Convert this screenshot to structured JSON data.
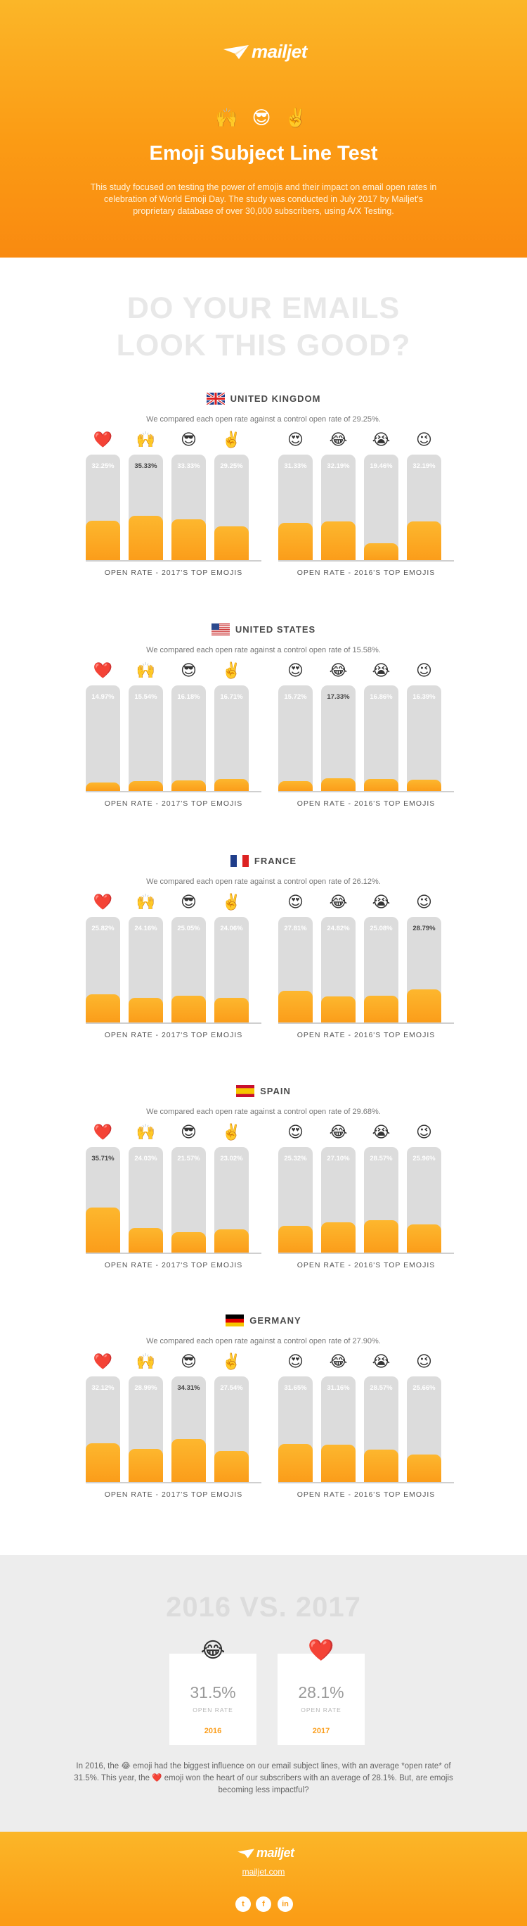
{
  "header": {
    "logo_text": "mailjet",
    "emojis": "🙌 😎 ✌️",
    "title": "Emoji Subject Line Test",
    "description": "This study focused on testing the power of emojis and their impact on email open rates in celebration of World Emoji Day. The study was conducted in July 2017 by Mailjet's proprietary database of over 30,000 subscribers, using A/X Testing."
  },
  "headline": {
    "line1": "DO YOUR EMAILS",
    "line2": "LOOK THIS GOOD?"
  },
  "icons": {
    "emojis_2017": [
      "❤️",
      "🙌",
      "😎",
      "✌️"
    ],
    "emojis_2016": [
      "😍",
      "😂",
      "😭",
      "😉"
    ],
    "flags": [
      "uk-flag-icon",
      "us-flag-icon",
      "france-flag-icon",
      "spain-flag-icon",
      "germany-flag-icon"
    ]
  },
  "colors": {
    "accent": "#fb9d1a",
    "bar_bg": "#dcdcdc"
  },
  "chart_data": [
    {
      "type": "bar",
      "title": "UNITED KINGDOM",
      "note": "We compared each open rate against a control open rate of 29.25%.",
      "groups": [
        {
          "label": "OPEN RATE - 2017'S TOP EMOJIS",
          "categories": [
            "heart",
            "raised hands",
            "sunglasses",
            "victory hand"
          ],
          "values": [
            32.25,
            35.33,
            33.33,
            29.25
          ],
          "labels": [
            "32.25%",
            "35.33%",
            "33.33%",
            "29.25%"
          ],
          "highlight": 1
        },
        {
          "label": "OPEN RATE - 2016'S TOP EMOJIS",
          "categories": [
            "heart eyes",
            "tears of joy",
            "loudly crying",
            "wink"
          ],
          "values": [
            31.33,
            32.19,
            19.46,
            32.19
          ],
          "labels": [
            "31.33%",
            "32.19%",
            "19.46%",
            "32.19%"
          ],
          "highlight": -1
        }
      ]
    },
    {
      "type": "bar",
      "title": "UNITED STATES",
      "note": "We compared each open rate against a control open rate of 15.58%.",
      "groups": [
        {
          "label": "OPEN RATE - 2017'S TOP EMOJIS",
          "categories": [
            "heart",
            "raised hands",
            "sunglasses",
            "victory hand"
          ],
          "values": [
            14.97,
            15.54,
            16.18,
            16.71
          ],
          "labels": [
            "14.97%",
            "15.54%",
            "16.18%",
            "16.71%"
          ],
          "highlight": -1
        },
        {
          "label": "OPEN RATE - 2016'S TOP EMOJIS",
          "categories": [
            "heart eyes",
            "tears of joy",
            "loudly crying",
            "wink"
          ],
          "values": [
            15.72,
            17.33,
            16.86,
            16.39
          ],
          "labels": [
            "15.72%",
            "17.33%",
            "16.86%",
            "16.39%"
          ],
          "highlight": 1
        }
      ]
    },
    {
      "type": "bar",
      "title": "FRANCE",
      "note": "We compared each open rate against a control open rate of 26.12%.",
      "groups": [
        {
          "label": "OPEN RATE - 2017'S TOP EMOJIS",
          "categories": [
            "heart",
            "raised hands",
            "sunglasses",
            "victory hand"
          ],
          "values": [
            25.82,
            24.16,
            25.05,
            24.06
          ],
          "labels": [
            "25.82%",
            "24.16%",
            "25.05%",
            "24.06%"
          ],
          "highlight": -1
        },
        {
          "label": "OPEN RATE - 2016'S TOP EMOJIS",
          "categories": [
            "heart eyes",
            "tears of joy",
            "loudly crying",
            "wink"
          ],
          "values": [
            27.81,
            24.82,
            25.08,
            28.79
          ],
          "labels": [
            "27.81%",
            "24.82%",
            "25.08%",
            "28.79%"
          ],
          "highlight": 3
        }
      ]
    },
    {
      "type": "bar",
      "title": "SPAIN",
      "note": "We compared each open rate against a control open rate of 29.68%.",
      "groups": [
        {
          "label": "OPEN RATE - 2017'S TOP EMOJIS",
          "categories": [
            "heart",
            "raised hands",
            "sunglasses",
            "victory hand"
          ],
          "values": [
            35.71,
            24.03,
            21.57,
            23.02
          ],
          "labels": [
            "35.71%",
            "24.03%",
            "21.57%",
            "23.02%"
          ],
          "highlight": 0
        },
        {
          "label": "OPEN RATE - 2016'S TOP EMOJIS",
          "categories": [
            "heart eyes",
            "tears of joy",
            "loudly crying",
            "wink"
          ],
          "values": [
            25.32,
            27.1,
            28.57,
            25.96
          ],
          "labels": [
            "25.32%",
            "27.10%",
            "28.57%",
            "25.96%"
          ],
          "highlight": -1
        }
      ]
    },
    {
      "type": "bar",
      "title": "GERMANY",
      "note": "We compared each open rate against a control open rate of 27.90%.",
      "groups": [
        {
          "label": "OPEN RATE - 2017'S TOP EMOJIS",
          "categories": [
            "heart",
            "raised hands",
            "sunglasses",
            "victory hand"
          ],
          "values": [
            32.12,
            28.99,
            34.31,
            27.54
          ],
          "labels": [
            "32.12%",
            "28.99%",
            "34.31%",
            "27.54%"
          ],
          "highlight": 2
        },
        {
          "label": "OPEN RATE - 2016'S TOP EMOJIS",
          "categories": [
            "heart eyes",
            "tears of joy",
            "loudly crying",
            "wink"
          ],
          "values": [
            31.65,
            31.16,
            28.57,
            25.66
          ],
          "labels": [
            "31.65%",
            "31.16%",
            "28.57%",
            "25.66%"
          ],
          "highlight": -1
        }
      ]
    }
  ],
  "comparison": {
    "title": "2016 VS. 2017",
    "cards": [
      {
        "emoji": "😂",
        "value": "31.5%",
        "label": "OPEN RATE",
        "year": "2016"
      },
      {
        "emoji": "❤️",
        "value": "28.1%",
        "label": "OPEN RATE",
        "year": "2017"
      }
    ],
    "text": "In 2016, the 😂 emoji had the biggest influence on our email subject lines, with an average *open rate* of 31.5%. This year, the ❤️ emoji won the heart of our subscribers with an average of 28.1%. But, are emojis becoming less impactful?"
  },
  "footer": {
    "logo_text": "mailjet",
    "url": "mailjet.com",
    "social": [
      "twitter-icon",
      "facebook-icon",
      "linkedin-icon"
    ],
    "social_glyphs": [
      "t",
      "f",
      "in"
    ]
  }
}
